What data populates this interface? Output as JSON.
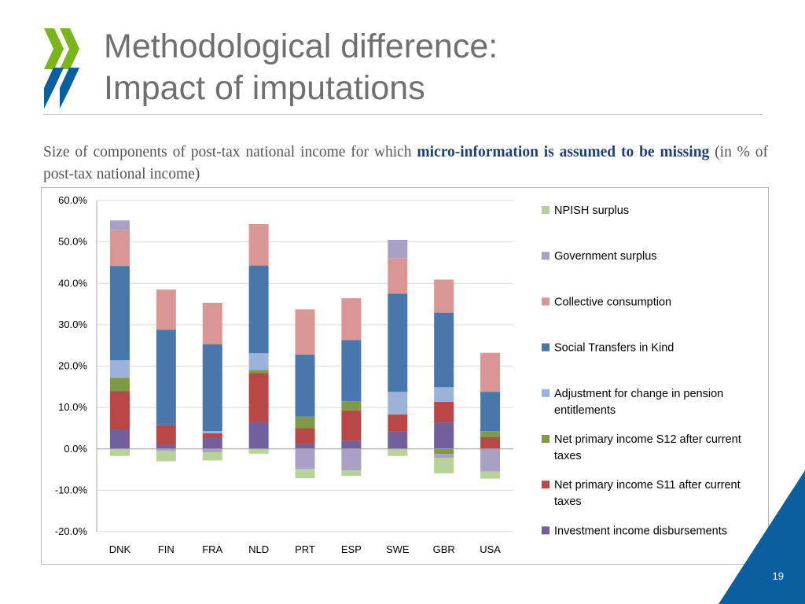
{
  "title_line1": "Methodological difference:",
  "title_line2": "Impact of imputations",
  "subtitle": {
    "part1": "Size of components of post-tax national income for which",
    "bold": "micro-information is assumed to be missing",
    "part2": "(in % of post-tax national income)"
  },
  "page_number": "19",
  "colors": {
    "accent_green": "#7ab51d",
    "accent_blue": "#0b5f9e",
    "title_gray": "#6f6f6f"
  },
  "chart_data": {
    "type": "bar",
    "stacked": true,
    "title": "",
    "xlabel": "",
    "ylabel": "",
    "categories": [
      "DNK",
      "FIN",
      "FRA",
      "NLD",
      "PRT",
      "ESP",
      "SWE",
      "GBR",
      "USA"
    ],
    "ylim": [
      -20,
      60
    ],
    "yticks": [
      -20,
      -10,
      0,
      10,
      20,
      30,
      40,
      50,
      60
    ],
    "ytick_labels": [
      "-20.0%",
      "-10.0%",
      "0.0%",
      "10.0%",
      "20.0%",
      "30.0%",
      "40.0%",
      "50.0%",
      "60.0%"
    ],
    "grid": true,
    "legend_position": "right",
    "series": [
      {
        "name": "Investment income disbursements",
        "color": "#71609b",
        "values": [
          4.7,
          1.0,
          2.8,
          6.5,
          1.2,
          2.0,
          4.3,
          6.4,
          0.0
        ]
      },
      {
        "name": "Net primary income S11 after current taxes",
        "color": "#b94745",
        "values": [
          9.3,
          4.8,
          1.0,
          11.8,
          3.8,
          7.3,
          4.0,
          5.0,
          2.8
        ]
      },
      {
        "name": "Net primary income S12 after current taxes",
        "color": "#7d9b44",
        "values": [
          3.2,
          0.0,
          0.0,
          0.8,
          2.8,
          2.2,
          0.0,
          -1.2,
          1.5
        ]
      },
      {
        "name": "Adjustment for change in pension entitlements",
        "color": "#9db2d9",
        "values": [
          4.2,
          0.0,
          0.5,
          4.0,
          0.0,
          0.0,
          5.5,
          3.5,
          0.0
        ]
      },
      {
        "name": "Social Transfers in Kind",
        "color": "#4a77ab",
        "values": [
          22.8,
          23.0,
          21.0,
          21.2,
          15.0,
          14.8,
          23.7,
          18.0,
          9.5
        ]
      },
      {
        "name": "Collective consumption",
        "color": "#d99694",
        "values": [
          8.6,
          9.7,
          10.0,
          10.0,
          10.9,
          10.1,
          8.5,
          8.0,
          9.4
        ]
      },
      {
        "name": "Government surplus",
        "color": "#a9a0c5",
        "values": [
          2.4,
          -0.5,
          -0.8,
          0.0,
          -4.8,
          -5.2,
          4.5,
          -1.0,
          -5.5
        ]
      },
      {
        "name": "NPISH surplus",
        "color": "#b8d39a",
        "values": [
          -1.7,
          -2.5,
          -2.0,
          -1.2,
          -2.3,
          -1.3,
          -1.7,
          -3.7,
          -1.7
        ]
      }
    ]
  }
}
